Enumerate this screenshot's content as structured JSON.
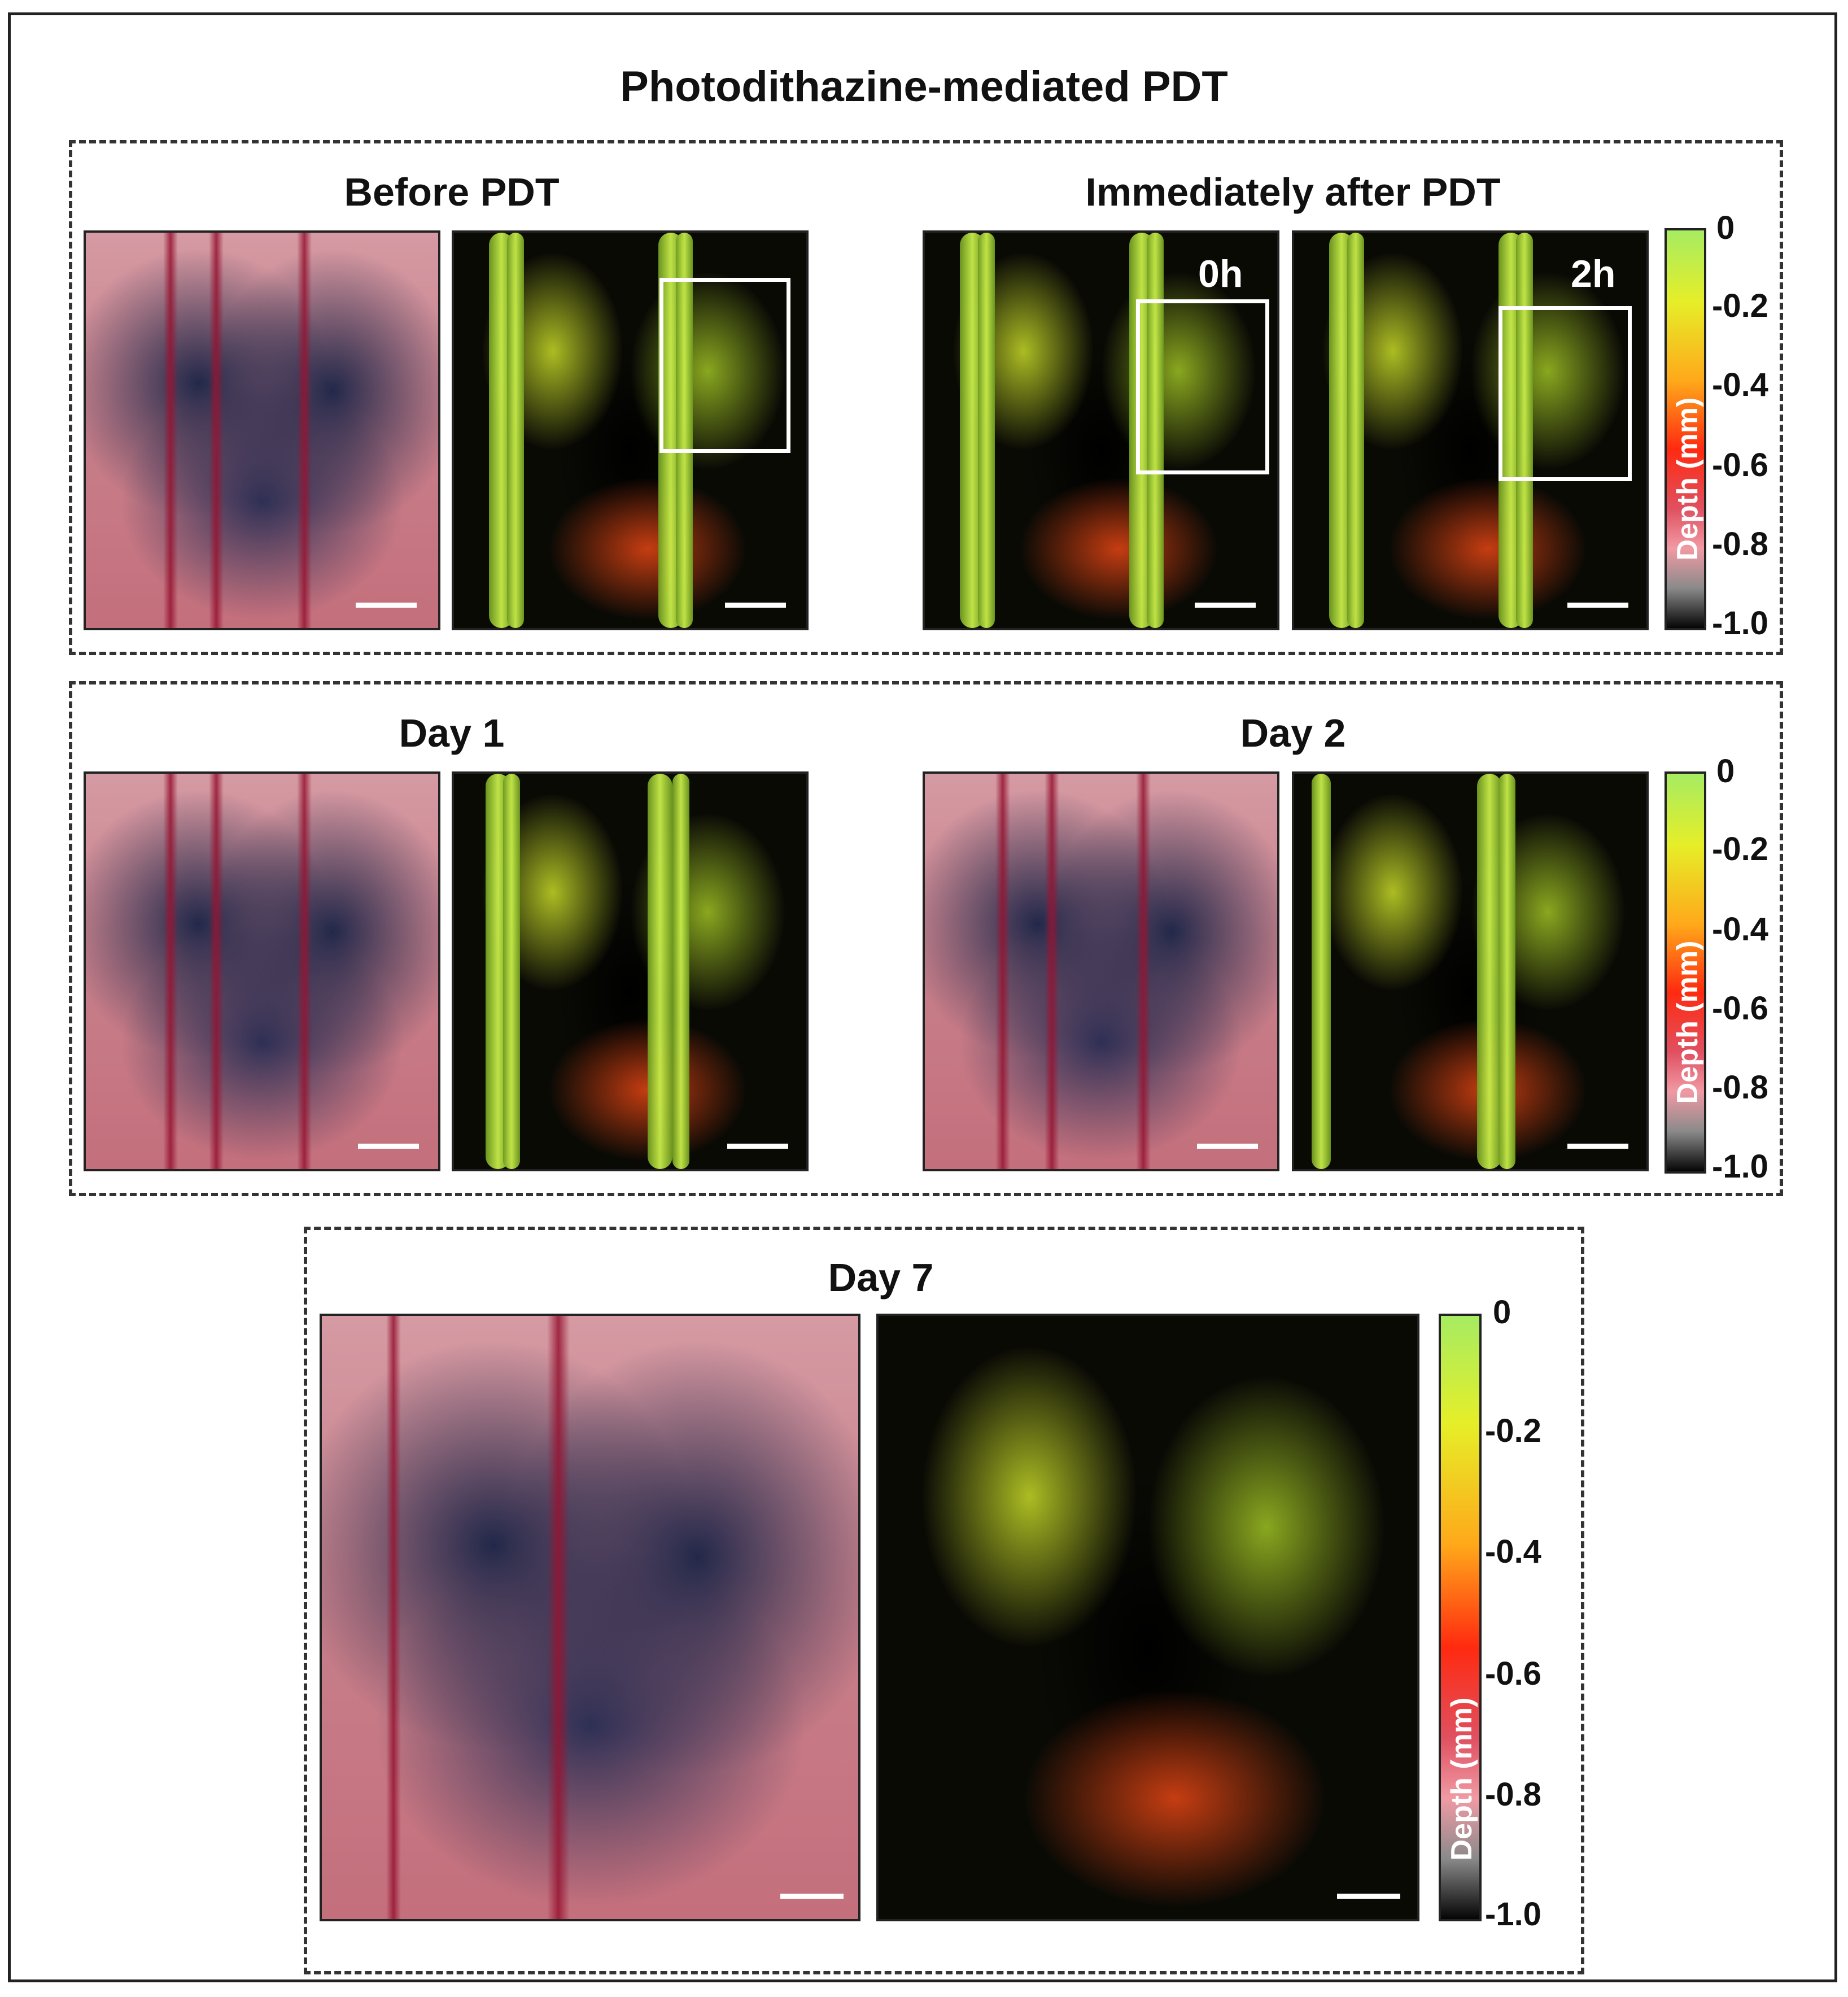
{
  "figure": {
    "title": "Photodithazine-mediated PDT"
  },
  "panels": {
    "before": "Before PDT",
    "after": "Immediately after PDT",
    "after_0h": "0h",
    "after_2h": "2h",
    "day1": "Day 1",
    "day2": "Day 2",
    "day7": "Day 7"
  },
  "colorbar": {
    "label": "Depth (mm)",
    "ticks": [
      "0",
      "-0.2",
      "-0.4",
      "-0.6",
      "-0.8",
      "-1.0"
    ],
    "colors": [
      "#a6ec62",
      "#e6ee28",
      "#ffa81a",
      "#ff2a10",
      "#f09aa4",
      "#050505"
    ]
  }
}
